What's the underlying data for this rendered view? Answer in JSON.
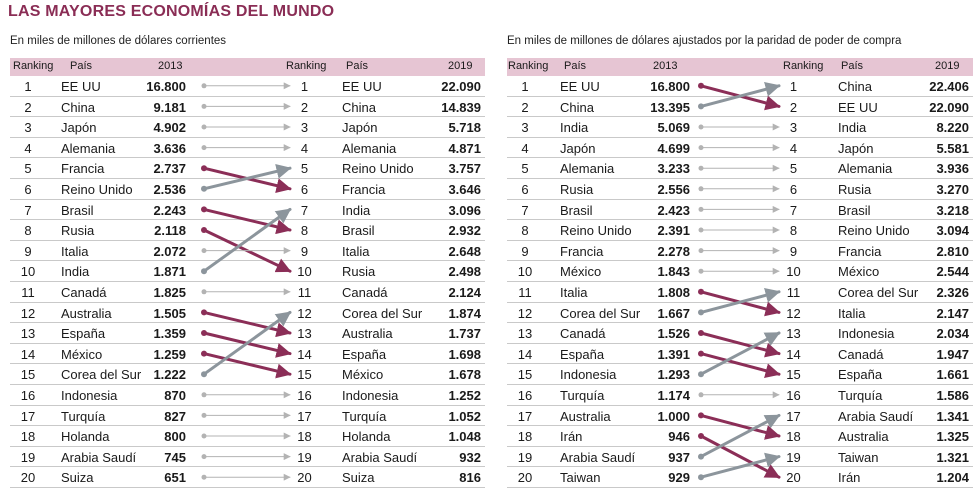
{
  "title": "LAS MAYORES ECONOMÍAS DEL MUNDO",
  "colors": {
    "accent": "#8a2d55",
    "header_bg": "#e6c5d3",
    "down": "#8b2e57",
    "up": "#8c959c",
    "same": "#b3b3b3"
  },
  "chart_data": [
    {
      "type": "table",
      "subtitle": "En miles de millones de dólares corrientes",
      "headers": {
        "ranking": "Ranking",
        "pais": "País",
        "year_a": "2013",
        "year_b": "2019"
      },
      "rows_2013": [
        {
          "rank": 1,
          "country": "EE UU",
          "value": "16.800"
        },
        {
          "rank": 2,
          "country": "China",
          "value": "9.181"
        },
        {
          "rank": 3,
          "country": "Japón",
          "value": "4.902"
        },
        {
          "rank": 4,
          "country": "Alemania",
          "value": "3.636"
        },
        {
          "rank": 5,
          "country": "Francia",
          "value": "2.737"
        },
        {
          "rank": 6,
          "country": "Reino Unido",
          "value": "2.536"
        },
        {
          "rank": 7,
          "country": "Brasil",
          "value": "2.243"
        },
        {
          "rank": 8,
          "country": "Rusia",
          "value": "2.118"
        },
        {
          "rank": 9,
          "country": "Italia",
          "value": "2.072"
        },
        {
          "rank": 10,
          "country": "India",
          "value": "1.871"
        },
        {
          "rank": 11,
          "country": "Canadá",
          "value": "1.825"
        },
        {
          "rank": 12,
          "country": "Australia",
          "value": "1.505"
        },
        {
          "rank": 13,
          "country": "España",
          "value": "1.359"
        },
        {
          "rank": 14,
          "country": "México",
          "value": "1.259"
        },
        {
          "rank": 15,
          "country": "Corea del Sur",
          "value": "1.222"
        },
        {
          "rank": 16,
          "country": "Indonesia",
          "value": "870"
        },
        {
          "rank": 17,
          "country": "Turquía",
          "value": "827"
        },
        {
          "rank": 18,
          "country": "Holanda",
          "value": "800"
        },
        {
          "rank": 19,
          "country": "Arabia Saudí",
          "value": "745"
        },
        {
          "rank": 20,
          "country": "Suiza",
          "value": "651"
        }
      ],
      "rows_2019": [
        {
          "rank": 1,
          "country": "EE UU",
          "value": "22.090"
        },
        {
          "rank": 2,
          "country": "China",
          "value": "14.839"
        },
        {
          "rank": 3,
          "country": "Japón",
          "value": "5.718"
        },
        {
          "rank": 4,
          "country": "Alemania",
          "value": "4.871"
        },
        {
          "rank": 5,
          "country": "Reino Unido",
          "value": "3.757"
        },
        {
          "rank": 6,
          "country": "Francia",
          "value": "3.646"
        },
        {
          "rank": 7,
          "country": "India",
          "value": "3.096"
        },
        {
          "rank": 8,
          "country": "Brasil",
          "value": "2.932"
        },
        {
          "rank": 9,
          "country": "Italia",
          "value": "2.648"
        },
        {
          "rank": 10,
          "country": "Rusia",
          "value": "2.498"
        },
        {
          "rank": 11,
          "country": "Canadá",
          "value": "2.124"
        },
        {
          "rank": 12,
          "country": "Corea del Sur",
          "value": "1.874"
        },
        {
          "rank": 13,
          "country": "Australia",
          "value": "1.737"
        },
        {
          "rank": 14,
          "country": "España",
          "value": "1.698"
        },
        {
          "rank": 15,
          "country": "México",
          "value": "1.678"
        },
        {
          "rank": 16,
          "country": "Indonesia",
          "value": "1.252"
        },
        {
          "rank": 17,
          "country": "Turquía",
          "value": "1.052"
        },
        {
          "rank": 18,
          "country": "Holanda",
          "value": "1.048"
        },
        {
          "rank": 19,
          "country": "Arabia Saudí",
          "value": "932"
        },
        {
          "rank": 20,
          "country": "Suiza",
          "value": "816"
        }
      ]
    },
    {
      "type": "table",
      "subtitle": "En miles de millones de dólares ajustados por la paridad de poder de compra",
      "headers": {
        "ranking": "Ranking",
        "pais": "País",
        "year_a": "2013",
        "year_b": "2019"
      },
      "rows_2013": [
        {
          "rank": 1,
          "country": "EE UU",
          "value": "16.800"
        },
        {
          "rank": 2,
          "country": "China",
          "value": "13.395"
        },
        {
          "rank": 3,
          "country": "India",
          "value": "5.069"
        },
        {
          "rank": 4,
          "country": "Japón",
          "value": "4.699"
        },
        {
          "rank": 5,
          "country": "Alemania",
          "value": "3.233"
        },
        {
          "rank": 6,
          "country": "Rusia",
          "value": "2.556"
        },
        {
          "rank": 7,
          "country": "Brasil",
          "value": "2.423"
        },
        {
          "rank": 8,
          "country": "Reino Unido",
          "value": "2.391"
        },
        {
          "rank": 9,
          "country": "Francia",
          "value": "2.278"
        },
        {
          "rank": 10,
          "country": "México",
          "value": "1.843"
        },
        {
          "rank": 11,
          "country": "Italia",
          "value": "1.808"
        },
        {
          "rank": 12,
          "country": "Corea del Sur",
          "value": "1.667"
        },
        {
          "rank": 13,
          "country": "Canadá",
          "value": "1.526"
        },
        {
          "rank": 14,
          "country": "España",
          "value": "1.391"
        },
        {
          "rank": 15,
          "country": "Indonesia",
          "value": "1.293"
        },
        {
          "rank": 16,
          "country": "Turquía",
          "value": "1.174"
        },
        {
          "rank": 17,
          "country": "Australia",
          "value": "1.000"
        },
        {
          "rank": 18,
          "country": "Irán",
          "value": "946"
        },
        {
          "rank": 19,
          "country": "Arabia Saudí",
          "value": "937"
        },
        {
          "rank": 20,
          "country": "Taiwan",
          "value": "929"
        }
      ],
      "rows_2019": [
        {
          "rank": 1,
          "country": "China",
          "value": "22.406"
        },
        {
          "rank": 2,
          "country": "EE UU",
          "value": "22.090"
        },
        {
          "rank": 3,
          "country": "India",
          "value": "8.220"
        },
        {
          "rank": 4,
          "country": "Japón",
          "value": "5.581"
        },
        {
          "rank": 5,
          "country": "Alemania",
          "value": "3.936"
        },
        {
          "rank": 6,
          "country": "Rusia",
          "value": "3.270"
        },
        {
          "rank": 7,
          "country": "Brasil",
          "value": "3.218"
        },
        {
          "rank": 8,
          "country": "Reino Unido",
          "value": "3.094"
        },
        {
          "rank": 9,
          "country": "Francia",
          "value": "2.810"
        },
        {
          "rank": 10,
          "country": "México",
          "value": "2.544"
        },
        {
          "rank": 11,
          "country": "Corea del Sur",
          "value": "2.326"
        },
        {
          "rank": 12,
          "country": "Italia",
          "value": "2.147"
        },
        {
          "rank": 13,
          "country": "Indonesia",
          "value": "2.034"
        },
        {
          "rank": 14,
          "country": "Canadá",
          "value": "1.947"
        },
        {
          "rank": 15,
          "country": "España",
          "value": "1.661"
        },
        {
          "rank": 16,
          "country": "Turquía",
          "value": "1.586"
        },
        {
          "rank": 17,
          "country": "Arabia Saudí",
          "value": "1.341"
        },
        {
          "rank": 18,
          "country": "Australia",
          "value": "1.325"
        },
        {
          "rank": 19,
          "country": "Taiwan",
          "value": "1.321"
        },
        {
          "rank": 20,
          "country": "Irán",
          "value": "1.204"
        }
      ]
    }
  ]
}
